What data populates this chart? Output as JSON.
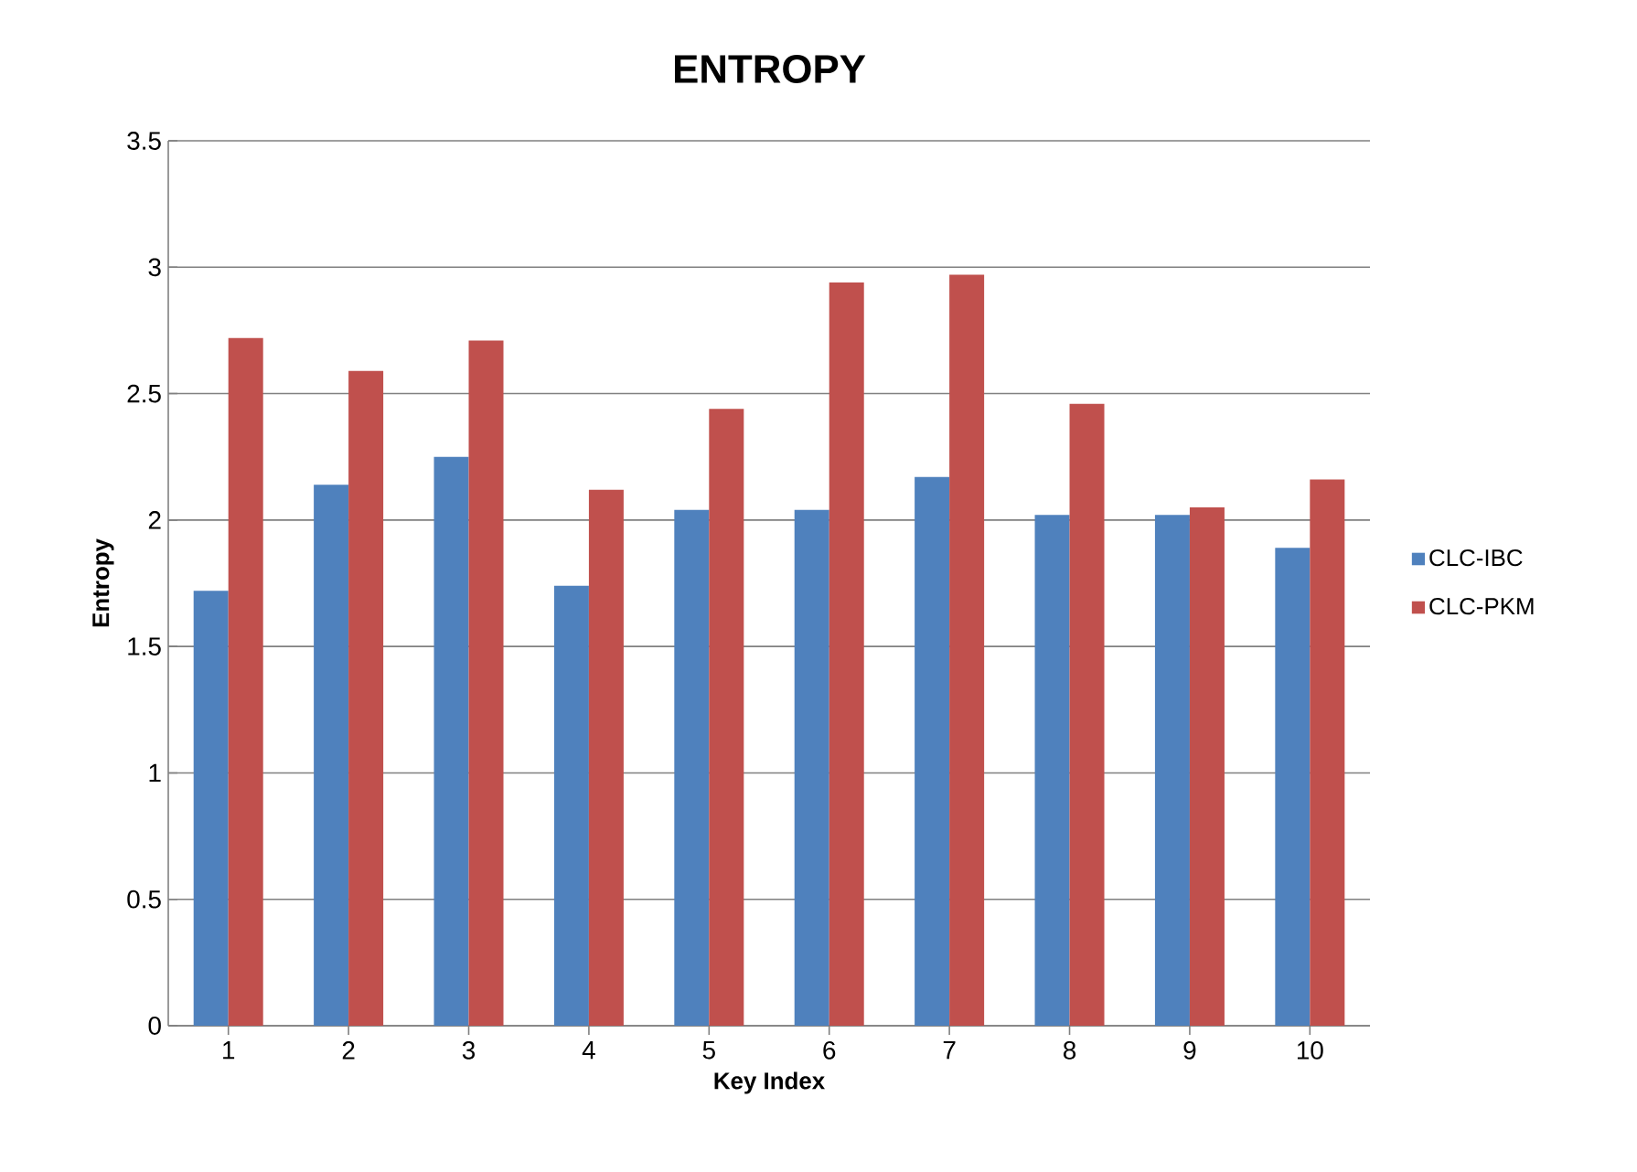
{
  "chart_data": {
    "type": "bar",
    "title": "ENTROPY",
    "xlabel": "Key Index",
    "ylabel": "Entropy",
    "categories": [
      "1",
      "2",
      "3",
      "4",
      "5",
      "6",
      "7",
      "8",
      "9",
      "10"
    ],
    "series": [
      {
        "name": "CLC-IBC",
        "color": "#4f81bd",
        "values": [
          1.72,
          2.14,
          2.25,
          1.74,
          2.04,
          2.04,
          2.17,
          2.02,
          2.02,
          1.89
        ]
      },
      {
        "name": "CLC-PKM",
        "color": "#c0504d",
        "values": [
          2.72,
          2.59,
          2.71,
          2.12,
          2.44,
          2.94,
          2.97,
          2.46,
          2.05,
          2.16
        ]
      }
    ],
    "ylim": [
      0,
      3.5
    ],
    "yticks": [
      0,
      0.5,
      1,
      1.5,
      2,
      2.5,
      3,
      3.5
    ],
    "grid": "y",
    "legend": "right"
  }
}
